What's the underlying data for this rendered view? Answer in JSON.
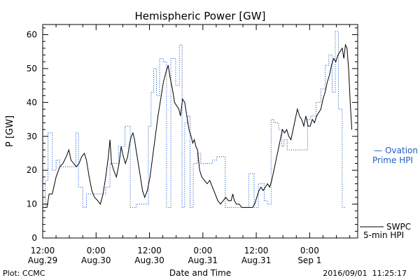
{
  "chart_data": {
    "type": "line",
    "title": "Hemispheric Power [GW]",
    "ylabel": "P [GW]",
    "xlabel": "Date and Time",
    "ylim": [
      0,
      63
    ],
    "yticks": [
      0,
      10,
      20,
      30,
      40,
      50,
      60
    ],
    "xlim": [
      0,
      59
    ],
    "xticks": [
      {
        "x": 0,
        "line1": "12:00",
        "line2": "Aug.29"
      },
      {
        "x": 10,
        "line1": "0:00",
        "line2": "Aug.30"
      },
      {
        "x": 20,
        "line1": "12:00",
        "line2": "Aug.30"
      },
      {
        "x": 30,
        "line1": "0:00",
        "line2": "Aug.31"
      },
      {
        "x": 40,
        "line1": "12:00",
        "line2": "Aug.31"
      },
      {
        "x": 50,
        "line1": "0:00",
        "line2": "Sep 1"
      }
    ],
    "grid": false,
    "series": [
      {
        "name": "SWPC 5-min HPI",
        "legend_line1": "SWPC",
        "legend_line2": "5-min HPI",
        "color": "#000000",
        "style": "solid",
        "points": [
          [
            0,
            9
          ],
          [
            0.8,
            9
          ],
          [
            1.2,
            13
          ],
          [
            1.8,
            13
          ],
          [
            2.5,
            18
          ],
          [
            3.2,
            21
          ],
          [
            3.8,
            22
          ],
          [
            4.4,
            24
          ],
          [
            4.9,
            26
          ],
          [
            5.3,
            23
          ],
          [
            5.8,
            22
          ],
          [
            6.3,
            21
          ],
          [
            6.8,
            22
          ],
          [
            7.3,
            24
          ],
          [
            7.8,
            25
          ],
          [
            8.2,
            23
          ],
          [
            8.7,
            18
          ],
          [
            9.2,
            14
          ],
          [
            9.7,
            12
          ],
          [
            10.3,
            11
          ],
          [
            10.8,
            10
          ],
          [
            11.3,
            13
          ],
          [
            11.8,
            18
          ],
          [
            12.3,
            24
          ],
          [
            12.6,
            29
          ],
          [
            12.9,
            22
          ],
          [
            13.3,
            20
          ],
          [
            13.8,
            18
          ],
          [
            14.3,
            22
          ],
          [
            14.7,
            27
          ],
          [
            15.1,
            24
          ],
          [
            15.5,
            22
          ],
          [
            15.9,
            24
          ],
          [
            16.3,
            28
          ],
          [
            16.6,
            30
          ],
          [
            16.9,
            31
          ],
          [
            17.2,
            29
          ],
          [
            17.6,
            25
          ],
          [
            17.9,
            22
          ],
          [
            18.3,
            18
          ],
          [
            18.7,
            14
          ],
          [
            19.1,
            12
          ],
          [
            19.6,
            14
          ],
          [
            20.1,
            18
          ],
          [
            20.6,
            24
          ],
          [
            21.1,
            30
          ],
          [
            21.6,
            36
          ],
          [
            22.1,
            41
          ],
          [
            22.6,
            46
          ],
          [
            23.1,
            49
          ],
          [
            23.5,
            51
          ],
          [
            23.9,
            47
          ],
          [
            24.3,
            44
          ],
          [
            24.7,
            40
          ],
          [
            25.1,
            39
          ],
          [
            25.5,
            38
          ],
          [
            25.8,
            36
          ],
          [
            26.2,
            41
          ],
          [
            26.6,
            40
          ],
          [
            27,
            36
          ],
          [
            27.4,
            32
          ],
          [
            27.8,
            30
          ],
          [
            28.1,
            28
          ],
          [
            28.4,
            29
          ],
          [
            28.7,
            27
          ],
          [
            29,
            26
          ],
          [
            29.4,
            20
          ],
          [
            29.8,
            18
          ],
          [
            30.3,
            17
          ],
          [
            30.8,
            16
          ],
          [
            31.3,
            17
          ],
          [
            31.8,
            15
          ],
          [
            32.3,
            13
          ],
          [
            32.8,
            11
          ],
          [
            33.3,
            10
          ],
          [
            33.8,
            11
          ],
          [
            34.3,
            12
          ],
          [
            34.8,
            11
          ],
          [
            35.3,
            11
          ],
          [
            35.6,
            13
          ],
          [
            35.9,
            11
          ],
          [
            36.3,
            10
          ],
          [
            36.8,
            10
          ],
          [
            37.3,
            9
          ],
          [
            37.8,
            9
          ],
          [
            38.3,
            9
          ],
          [
            38.8,
            9
          ],
          [
            39.3,
            9
          ],
          [
            39.7,
            10
          ],
          [
            40.1,
            12
          ],
          [
            40.5,
            14
          ],
          [
            40.9,
            15
          ],
          [
            41.3,
            14
          ],
          [
            41.7,
            15
          ],
          [
            42.1,
            16
          ],
          [
            42.5,
            15
          ],
          [
            42.9,
            17
          ],
          [
            43.3,
            20
          ],
          [
            43.7,
            23
          ],
          [
            44.1,
            26
          ],
          [
            44.5,
            29
          ],
          [
            44.9,
            32
          ],
          [
            45.3,
            31
          ],
          [
            45.7,
            32
          ],
          [
            46.1,
            30
          ],
          [
            46.5,
            29
          ],
          [
            46.9,
            32
          ],
          [
            47.3,
            35
          ],
          [
            47.7,
            38
          ],
          [
            48.1,
            36
          ],
          [
            48.5,
            35
          ],
          [
            48.9,
            33
          ],
          [
            49.3,
            36
          ],
          [
            49.7,
            33
          ],
          [
            50.1,
            33
          ],
          [
            50.5,
            35
          ],
          [
            50.9,
            34
          ],
          [
            51.3,
            36
          ],
          [
            51.7,
            37
          ],
          [
            52.1,
            38
          ],
          [
            52.5,
            41
          ],
          [
            52.9,
            43
          ],
          [
            53.3,
            46
          ],
          [
            53.7,
            48
          ],
          [
            54.1,
            51
          ],
          [
            54.5,
            53
          ],
          [
            54.9,
            52
          ],
          [
            55.3,
            54
          ],
          [
            55.7,
            55
          ],
          [
            56.1,
            56
          ],
          [
            56.4,
            53
          ],
          [
            56.7,
            57
          ],
          [
            57,
            56
          ],
          [
            57.3,
            50
          ],
          [
            57.6,
            40
          ],
          [
            57.9,
            32
          ]
        ]
      },
      {
        "name": "Ovation Prime HPI",
        "legend_line1": "— Ovation",
        "legend_line2": "Prime HPI",
        "color": "#1f5fc8",
        "style": "dotted",
        "points": [
          [
            0,
            9
          ],
          [
            0.5,
            9
          ],
          [
            0.5,
            17
          ],
          [
            1,
            17
          ],
          [
            1,
            31
          ],
          [
            1.8,
            31
          ],
          [
            1.8,
            20
          ],
          [
            2.5,
            20
          ],
          [
            2.5,
            23
          ],
          [
            3.2,
            23
          ],
          [
            3.2,
            21
          ],
          [
            6.2,
            21
          ],
          [
            6.2,
            31
          ],
          [
            6.7,
            31
          ],
          [
            6.7,
            15
          ],
          [
            7.5,
            15
          ],
          [
            7.5,
            9
          ],
          [
            8.2,
            9
          ],
          [
            8.2,
            13
          ],
          [
            11.8,
            13
          ],
          [
            11.8,
            15
          ],
          [
            12.6,
            15
          ],
          [
            12.6,
            22
          ],
          [
            14.2,
            22
          ],
          [
            14.2,
            27
          ],
          [
            15.4,
            27
          ],
          [
            15.4,
            33
          ],
          [
            16.4,
            33
          ],
          [
            16.4,
            9
          ],
          [
            17.5,
            9
          ],
          [
            17.5,
            10
          ],
          [
            19.8,
            10
          ],
          [
            19.8,
            33
          ],
          [
            20.3,
            33
          ],
          [
            20.3,
            43
          ],
          [
            20.8,
            43
          ],
          [
            20.8,
            50
          ],
          [
            21.3,
            50
          ],
          [
            21.3,
            42
          ],
          [
            21.9,
            42
          ],
          [
            21.9,
            53
          ],
          [
            22.6,
            53
          ],
          [
            22.6,
            52
          ],
          [
            23.2,
            52
          ],
          [
            23.2,
            9
          ],
          [
            24,
            9
          ],
          [
            24,
            53
          ],
          [
            24.9,
            53
          ],
          [
            24.9,
            45
          ],
          [
            25.6,
            45
          ],
          [
            25.6,
            57
          ],
          [
            26.1,
            57
          ],
          [
            26.1,
            9
          ],
          [
            26.6,
            9
          ],
          [
            26.6,
            34
          ],
          [
            27.1,
            34
          ],
          [
            27.1,
            36
          ],
          [
            27.6,
            36
          ],
          [
            27.6,
            9
          ],
          [
            28.2,
            9
          ],
          [
            28.2,
            22
          ],
          [
            29,
            22
          ],
          [
            29,
            25
          ],
          [
            29.6,
            25
          ],
          [
            29.6,
            22
          ],
          [
            31.8,
            22
          ],
          [
            31.8,
            23
          ],
          [
            32.6,
            23
          ],
          [
            32.6,
            24
          ],
          [
            34.2,
            24
          ],
          [
            34.2,
            9
          ],
          [
            38.6,
            9
          ],
          [
            38.6,
            19
          ],
          [
            39.6,
            19
          ],
          [
            39.6,
            9
          ],
          [
            40.4,
            9
          ],
          [
            40.4,
            16
          ],
          [
            41.5,
            16
          ],
          [
            41.5,
            11
          ],
          [
            42.1,
            11
          ],
          [
            42.1,
            10
          ],
          [
            42.8,
            10
          ],
          [
            42.8,
            35
          ],
          [
            43.3,
            35
          ],
          [
            43.3,
            34
          ],
          [
            44.2,
            34
          ],
          [
            44.2,
            32
          ],
          [
            44.8,
            32
          ],
          [
            44.8,
            27
          ],
          [
            45.2,
            27
          ],
          [
            45.2,
            29
          ],
          [
            45.8,
            29
          ],
          [
            45.8,
            26
          ],
          [
            49.6,
            26
          ],
          [
            49.6,
            35
          ],
          [
            50.2,
            35
          ],
          [
            50.2,
            36
          ],
          [
            51.2,
            36
          ],
          [
            51.2,
            40
          ],
          [
            52.1,
            40
          ],
          [
            52.1,
            44
          ],
          [
            52.9,
            44
          ],
          [
            52.9,
            51
          ],
          [
            53.6,
            51
          ],
          [
            53.6,
            54
          ],
          [
            54.2,
            54
          ],
          [
            54.2,
            43
          ],
          [
            54.8,
            43
          ],
          [
            54.8,
            61
          ],
          [
            55.4,
            61
          ],
          [
            55.4,
            38
          ],
          [
            56.1,
            38
          ],
          [
            56.1,
            9
          ],
          [
            56.7,
            9
          ]
        ]
      }
    ]
  },
  "footer": {
    "left": "Plot: CCMC",
    "timestamp": "2016/09/01  11:25:17"
  }
}
